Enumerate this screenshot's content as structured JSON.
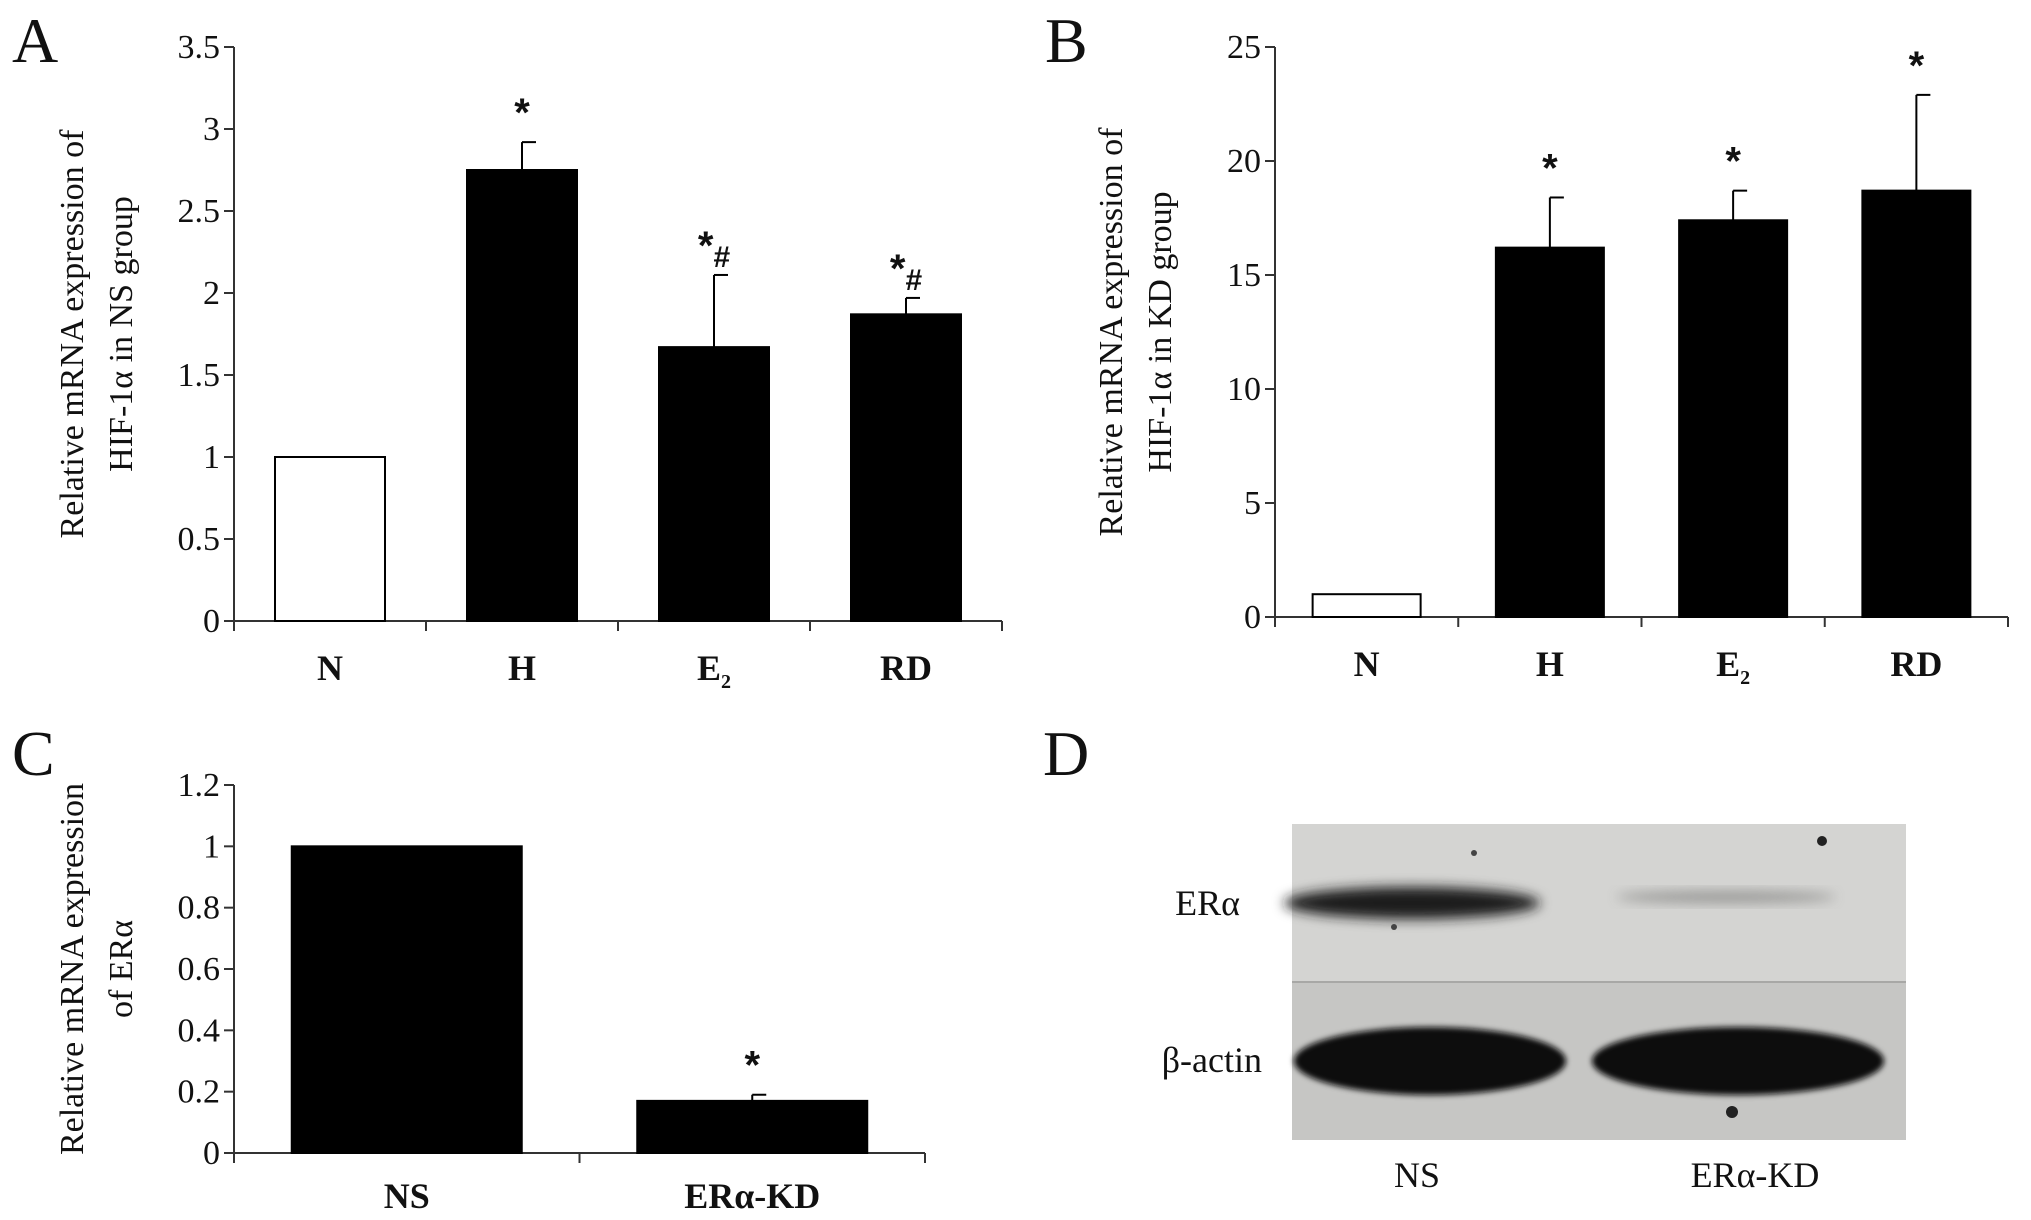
{
  "panels": {
    "a": "A",
    "b": "B",
    "c": "C",
    "d": "D"
  },
  "chart_data": [
    {
      "type": "bar",
      "panel": "A",
      "ylabel_lines": [
        "Relative mRNA expression of",
        "HIF-1α in NS group"
      ],
      "categories": [
        {
          "label": "N",
          "sub": ""
        },
        {
          "label": "H",
          "sub": ""
        },
        {
          "label": "E",
          "sub": "2"
        },
        {
          "label": "RD",
          "sub": ""
        }
      ],
      "values": [
        1.0,
        2.75,
        1.67,
        1.87
      ],
      "errors": [
        0,
        0.17,
        0.44,
        0.1
      ],
      "fills": [
        "#ffffff",
        "#000000",
        "#000000",
        "#000000"
      ],
      "significance": [
        "",
        "*",
        "*#",
        "*#"
      ],
      "ylim": [
        0,
        3.5
      ],
      "yticks": [
        "0",
        "0.5",
        "1",
        "1.5",
        "2",
        "2.5",
        "3",
        "3.5"
      ]
    },
    {
      "type": "bar",
      "panel": "B",
      "ylabel_lines": [
        "Relative mRNA expression of",
        "HIF-1α in KD group"
      ],
      "categories": [
        {
          "label": "N",
          "sub": ""
        },
        {
          "label": "H",
          "sub": ""
        },
        {
          "label": "E",
          "sub": "2"
        },
        {
          "label": "RD",
          "sub": ""
        }
      ],
      "values": [
        1.0,
        16.2,
        17.4,
        18.7
      ],
      "errors": [
        0,
        2.2,
        1.3,
        4.2
      ],
      "fills": [
        "#ffffff",
        "#000000",
        "#000000",
        "#000000"
      ],
      "significance": [
        "",
        "*",
        "*",
        "*"
      ],
      "ylim": [
        0,
        25
      ],
      "yticks": [
        "0",
        "5",
        "10",
        "15",
        "20",
        "25"
      ]
    },
    {
      "type": "bar",
      "panel": "C",
      "ylabel_lines": [
        "Relative mRNA expression",
        "of ERα"
      ],
      "categories": [
        {
          "label": "NS",
          "sub": ""
        },
        {
          "label": "ERα-KD",
          "sub": ""
        }
      ],
      "values": [
        1.0,
        0.17
      ],
      "errors": [
        0,
        0.02
      ],
      "fills": [
        "#000000",
        "#000000"
      ],
      "significance": [
        "",
        "*"
      ],
      "ylim": [
        0,
        1.2
      ],
      "yticks": [
        "0",
        "0.2",
        "0.4",
        "0.6",
        "0.8",
        "1",
        "1.2"
      ]
    }
  ],
  "blot": {
    "rows": [
      "ERα",
      "β-actin"
    ],
    "lanes": [
      "NS",
      "ERα-KD"
    ]
  }
}
